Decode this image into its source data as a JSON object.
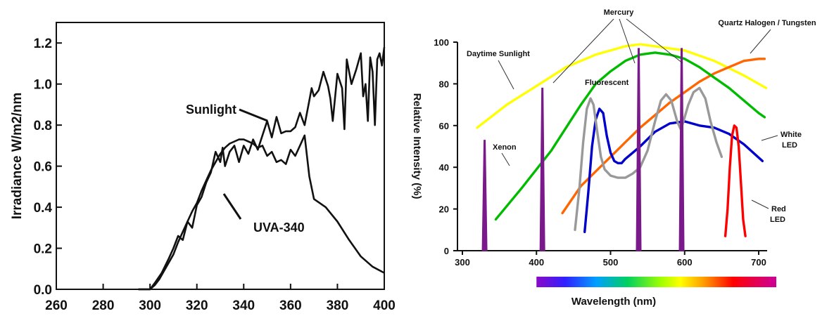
{
  "chart_data": [
    {
      "type": "line",
      "xlabel": "",
      "ylabel": "Irradiance  W/m2/nm",
      "xlim": [
        260,
        400
      ],
      "ylim": [
        0,
        1.3
      ],
      "x_ticks": [
        "260",
        "280",
        "300",
        "320",
        "340",
        "360",
        "380",
        "400"
      ],
      "y_ticks": [
        "0.0",
        "0.2",
        "0.4",
        "0.6",
        "0.8",
        "1.0",
        "1.2"
      ],
      "grid": false,
      "annotations": [
        "Sunlight",
        "UVA-340"
      ],
      "series": [
        {
          "name": "Sunlight",
          "x": [
            295,
            300,
            302,
            305,
            308,
            310,
            312,
            314,
            316,
            318,
            320,
            322,
            324,
            326,
            328,
            330,
            331,
            332,
            334,
            336,
            338,
            340,
            342,
            344,
            346,
            348,
            350,
            352,
            354,
            356,
            358,
            360,
            362,
            364,
            366,
            368,
            369,
            370,
            372,
            374,
            376,
            377,
            378,
            380,
            382,
            383,
            384,
            386,
            388,
            390,
            391,
            392,
            393,
            394,
            395,
            396,
            397,
            398,
            399,
            400
          ],
          "y": [
            0.0,
            0.0,
            0.03,
            0.08,
            0.15,
            0.2,
            0.26,
            0.24,
            0.33,
            0.3,
            0.41,
            0.45,
            0.52,
            0.57,
            0.67,
            0.62,
            0.69,
            0.6,
            0.67,
            0.7,
            0.62,
            0.7,
            0.66,
            0.73,
            0.68,
            0.75,
            0.82,
            0.74,
            0.84,
            0.76,
            0.77,
            0.77,
            0.79,
            0.86,
            0.8,
            0.92,
            0.98,
            0.94,
            0.97,
            1.06,
            0.99,
            0.93,
            0.82,
            1.05,
            0.98,
            0.78,
            1.12,
            1.0,
            1.07,
            1.15,
            0.94,
            1.0,
            0.82,
            1.13,
            1.06,
            0.8,
            1.12,
            1.15,
            1.09,
            1.18
          ]
        },
        {
          "name": "UVA-340",
          "x": [
            295,
            300,
            302,
            304,
            306,
            308,
            310,
            312,
            314,
            316,
            318,
            320,
            322,
            324,
            326,
            328,
            330,
            332,
            334,
            336,
            338,
            340,
            342,
            344,
            346,
            348,
            350,
            352,
            354,
            356,
            358,
            360,
            362,
            364,
            366,
            368,
            370,
            375,
            380,
            385,
            390,
            395,
            400
          ],
          "y": [
            0.0,
            0.0,
            0.02,
            0.05,
            0.09,
            0.13,
            0.17,
            0.23,
            0.28,
            0.33,
            0.38,
            0.42,
            0.48,
            0.53,
            0.58,
            0.62,
            0.66,
            0.69,
            0.71,
            0.72,
            0.73,
            0.73,
            0.72,
            0.71,
            0.69,
            0.7,
            0.65,
            0.67,
            0.62,
            0.63,
            0.61,
            0.68,
            0.65,
            0.7,
            0.75,
            0.55,
            0.44,
            0.4,
            0.33,
            0.24,
            0.16,
            0.11,
            0.08
          ]
        }
      ]
    },
    {
      "type": "line",
      "xlabel": "Wavelength (nm)",
      "ylabel": "Relative Intensity (%)",
      "xlim": [
        300,
        720
      ],
      "ylim": [
        0,
        100
      ],
      "x_ticks": [
        "300",
        "400",
        "500",
        "600",
        "700"
      ],
      "y_ticks": [
        "0",
        "20",
        "40",
        "60",
        "80",
        "100"
      ],
      "grid": false,
      "annotations": [
        "Mercury",
        "Quartz Halogen / Tungsten",
        "Daytime Sunlight",
        "Fluorescent",
        "Xenon",
        "White",
        "LED",
        "Red",
        "LED"
      ],
      "spectrum_bar": {
        "from": 400,
        "to": 750
      },
      "series": [
        {
          "name": "Daytime Sunlight",
          "color": "#ffff00",
          "x": [
            320,
            360,
            400,
            440,
            480,
            520,
            540,
            560,
            600,
            640,
            680,
            710
          ],
          "y": [
            59,
            70,
            79,
            88,
            94,
            98,
            99,
            98,
            96,
            91,
            84,
            78
          ]
        },
        {
          "name": "Quartz Halogen / Tungsten",
          "color": "#ff6600",
          "x": [
            435,
            460,
            480,
            500,
            520,
            540,
            560,
            580,
            600,
            620,
            640,
            660,
            680,
            700,
            708
          ],
          "y": [
            18,
            31,
            38,
            45,
            52,
            59,
            65,
            71,
            76,
            81,
            85,
            88,
            91,
            92,
            92
          ]
        },
        {
          "name": "Mercury (broad)",
          "color": "#00bb00",
          "x": [
            345,
            380,
            420,
            460,
            480,
            500,
            520,
            540,
            560,
            580,
            600,
            620,
            640,
            660,
            680,
            700,
            708
          ],
          "y": [
            15,
            30,
            48,
            70,
            80,
            86,
            91,
            94,
            95,
            94,
            92,
            88,
            83,
            78,
            72,
            66,
            64
          ]
        },
        {
          "name": "White LED",
          "color": "#0000cc",
          "x": [
            465,
            470,
            475,
            480,
            485,
            490,
            495,
            500,
            505,
            510,
            515,
            520,
            530,
            540,
            560,
            580,
            600,
            620,
            640,
            660,
            680,
            705
          ],
          "y": [
            9,
            28,
            50,
            63,
            68,
            66,
            55,
            47,
            43,
            42,
            42,
            44,
            47,
            50,
            57,
            61,
            62,
            60,
            59,
            56,
            51,
            43
          ]
        },
        {
          "name": "Fluorescent",
          "color": "#999999",
          "x": [
            452,
            458,
            463,
            468,
            473,
            477,
            482,
            487,
            492,
            500,
            510,
            520,
            530,
            540,
            550,
            560,
            568,
            575,
            582,
            590,
            595,
            600,
            605,
            612,
            620,
            628,
            635,
            643,
            650
          ],
          "y": [
            10,
            30,
            52,
            68,
            73,
            70,
            57,
            45,
            39,
            36,
            35,
            35,
            37,
            40,
            48,
            62,
            72,
            75,
            72,
            62,
            58,
            64,
            70,
            76,
            78,
            73,
            62,
            52,
            45
          ]
        },
        {
          "name": "Red LED",
          "color": "#ff0000",
          "x": [
            655,
            658,
            661,
            664,
            667,
            670,
            673,
            676,
            679,
            682
          ],
          "y": [
            7,
            20,
            40,
            55,
            60,
            59,
            50,
            33,
            15,
            7
          ]
        }
      ],
      "peaks": [
        {
          "name": "Xenon",
          "x": 330,
          "y": 53
        },
        {
          "name": "Mercury",
          "x": 408,
          "y": 78
        },
        {
          "name": "Mercury",
          "x": 538,
          "y": 97
        },
        {
          "name": "Mercury",
          "x": 596,
          "y": 97
        }
      ]
    }
  ]
}
